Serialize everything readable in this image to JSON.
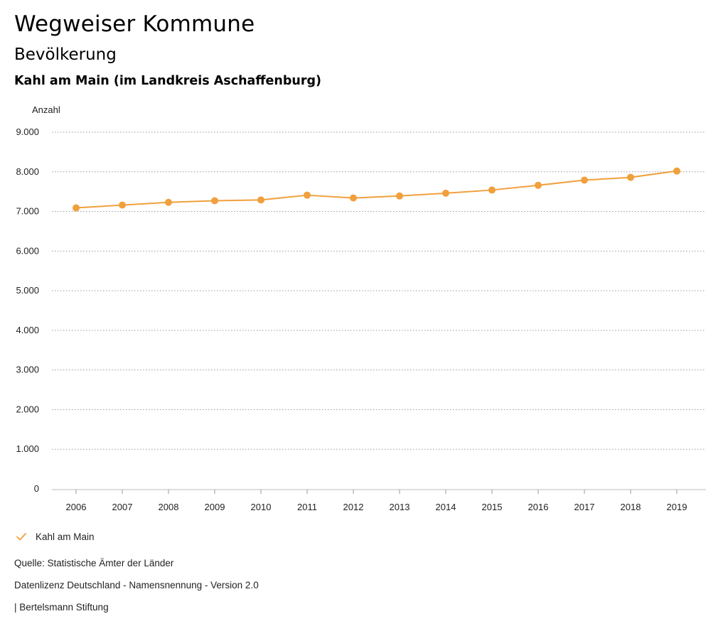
{
  "header": {
    "title": "Wegweiser Kommune",
    "subtitle": "Bevölkerung",
    "region": "Kahl am Main (im Landkreis Aschaffenburg)"
  },
  "colors": {
    "series": "#f0a03c",
    "grid": "#999999"
  },
  "legend": {
    "label": "Kahl am Main"
  },
  "footer": {
    "source": "Quelle: Statistische Ämter der Länder",
    "license": "Datenlizenz Deutschland - Namensnennung - Version 2.0",
    "publisher": "| Bertelsmann Stiftung"
  },
  "chart_data": {
    "type": "line",
    "title": "Bevölkerung",
    "ylabel": "Anzahl",
    "xlabel": "",
    "ylim": [
      0,
      9000
    ],
    "yticks": [
      0,
      1000,
      2000,
      3000,
      4000,
      5000,
      6000,
      7000,
      8000,
      9000
    ],
    "ytick_labels": [
      "0",
      "1.000",
      "2.000",
      "3.000",
      "4.000",
      "5.000",
      "6.000",
      "7.000",
      "8.000",
      "9.000"
    ],
    "categories": [
      "2006",
      "2007",
      "2008",
      "2009",
      "2010",
      "2011",
      "2012",
      "2013",
      "2014",
      "2015",
      "2016",
      "2017",
      "2018",
      "2019"
    ],
    "series": [
      {
        "name": "Kahl am Main",
        "values": [
          7090,
          7160,
          7230,
          7270,
          7290,
          7410,
          7340,
          7390,
          7460,
          7540,
          7660,
          7790,
          7860,
          8020
        ]
      }
    ],
    "grid": true,
    "legend_position": "bottom-left"
  }
}
